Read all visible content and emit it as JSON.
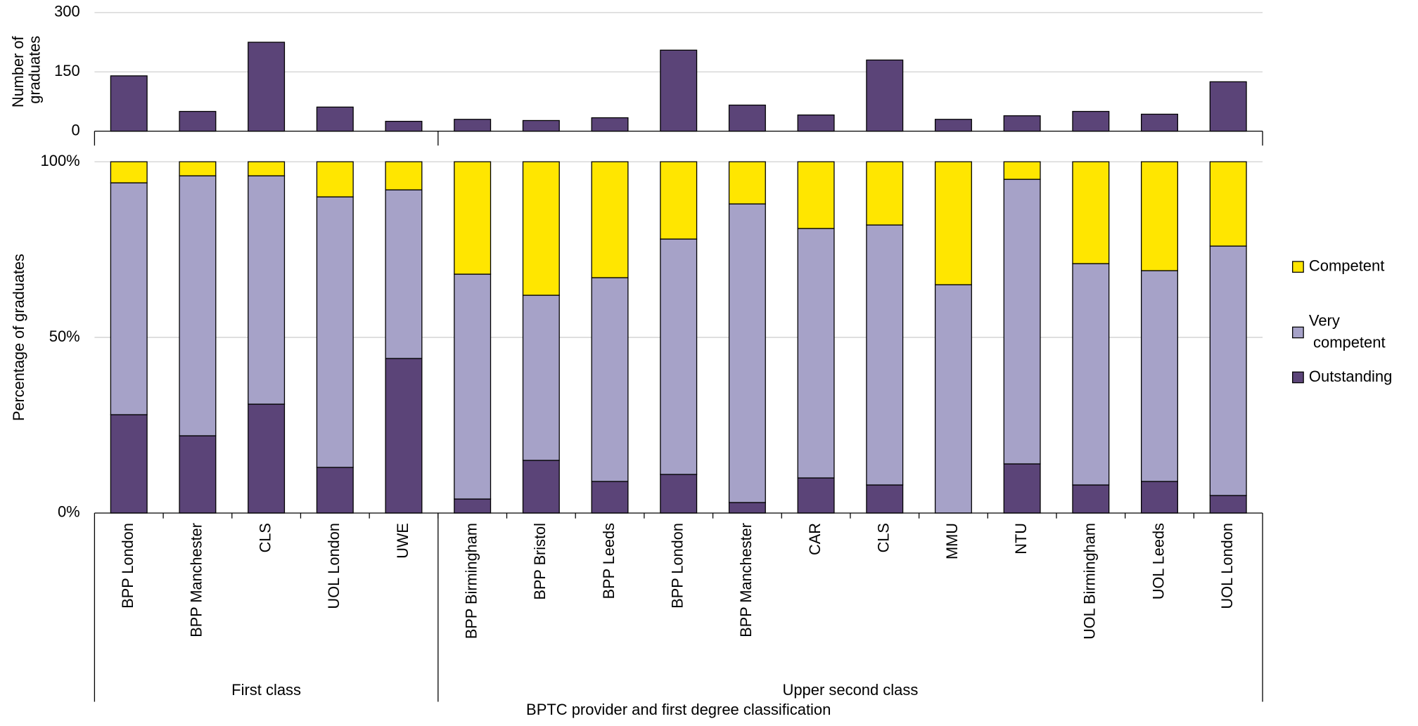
{
  "chart_data": [
    {
      "type": "bar",
      "ylabel": "Number of graduates",
      "color": "#5b4478",
      "values": [
        140,
        50,
        225,
        61,
        25,
        30,
        27,
        34,
        205,
        66,
        41,
        180,
        30,
        39,
        50,
        43,
        125
      ],
      "ylim": [
        0,
        300
      ],
      "yticks": [
        0,
        150,
        300
      ],
      "grid": true
    },
    {
      "type": "stacked_bar",
      "ylabel": "Percentage of graduates",
      "xlabel": "BPTC provider and first degree classification",
      "groups": [
        {
          "name": "First class",
          "categories": [
            "BPP London",
            "BPP Manchester",
            "CLS",
            "UOL London",
            "UWE"
          ]
        },
        {
          "name": "Upper second class",
          "categories": [
            "BPP Birmingham",
            "BPP Bristol",
            "BPP Leeds",
            "BPP London",
            "BPP Manchester",
            "CAR",
            "CLS",
            "MMU",
            "NTU",
            "UOL Birmingham",
            "UOL Leeds",
            "UOL London"
          ]
        }
      ],
      "series": [
        {
          "name": "Outstanding",
          "color": "#5b4478",
          "values": [
            28,
            22,
            31,
            13,
            44,
            4,
            15,
            9,
            11,
            3,
            10,
            8,
            0,
            14,
            8,
            9,
            5
          ]
        },
        {
          "name": "Very competent",
          "color": "#a6a2c8",
          "values": [
            66,
            74,
            65,
            77,
            48,
            64,
            47,
            58,
            67,
            85,
            71,
            74,
            65,
            81,
            63,
            60,
            71
          ]
        },
        {
          "name": "Competent",
          "color": "#ffe600",
          "values": [
            6,
            4,
            4,
            10,
            8,
            32,
            38,
            33,
            22,
            12,
            19,
            18,
            35,
            5,
            29,
            31,
            24
          ]
        }
      ],
      "ylim": [
        0,
        100
      ],
      "yticks": [
        {
          "value": 0,
          "label": "0%"
        },
        {
          "value": 50,
          "label": "50%"
        },
        {
          "value": 100,
          "label": "100%"
        }
      ],
      "grid": true,
      "legend": "right"
    }
  ]
}
